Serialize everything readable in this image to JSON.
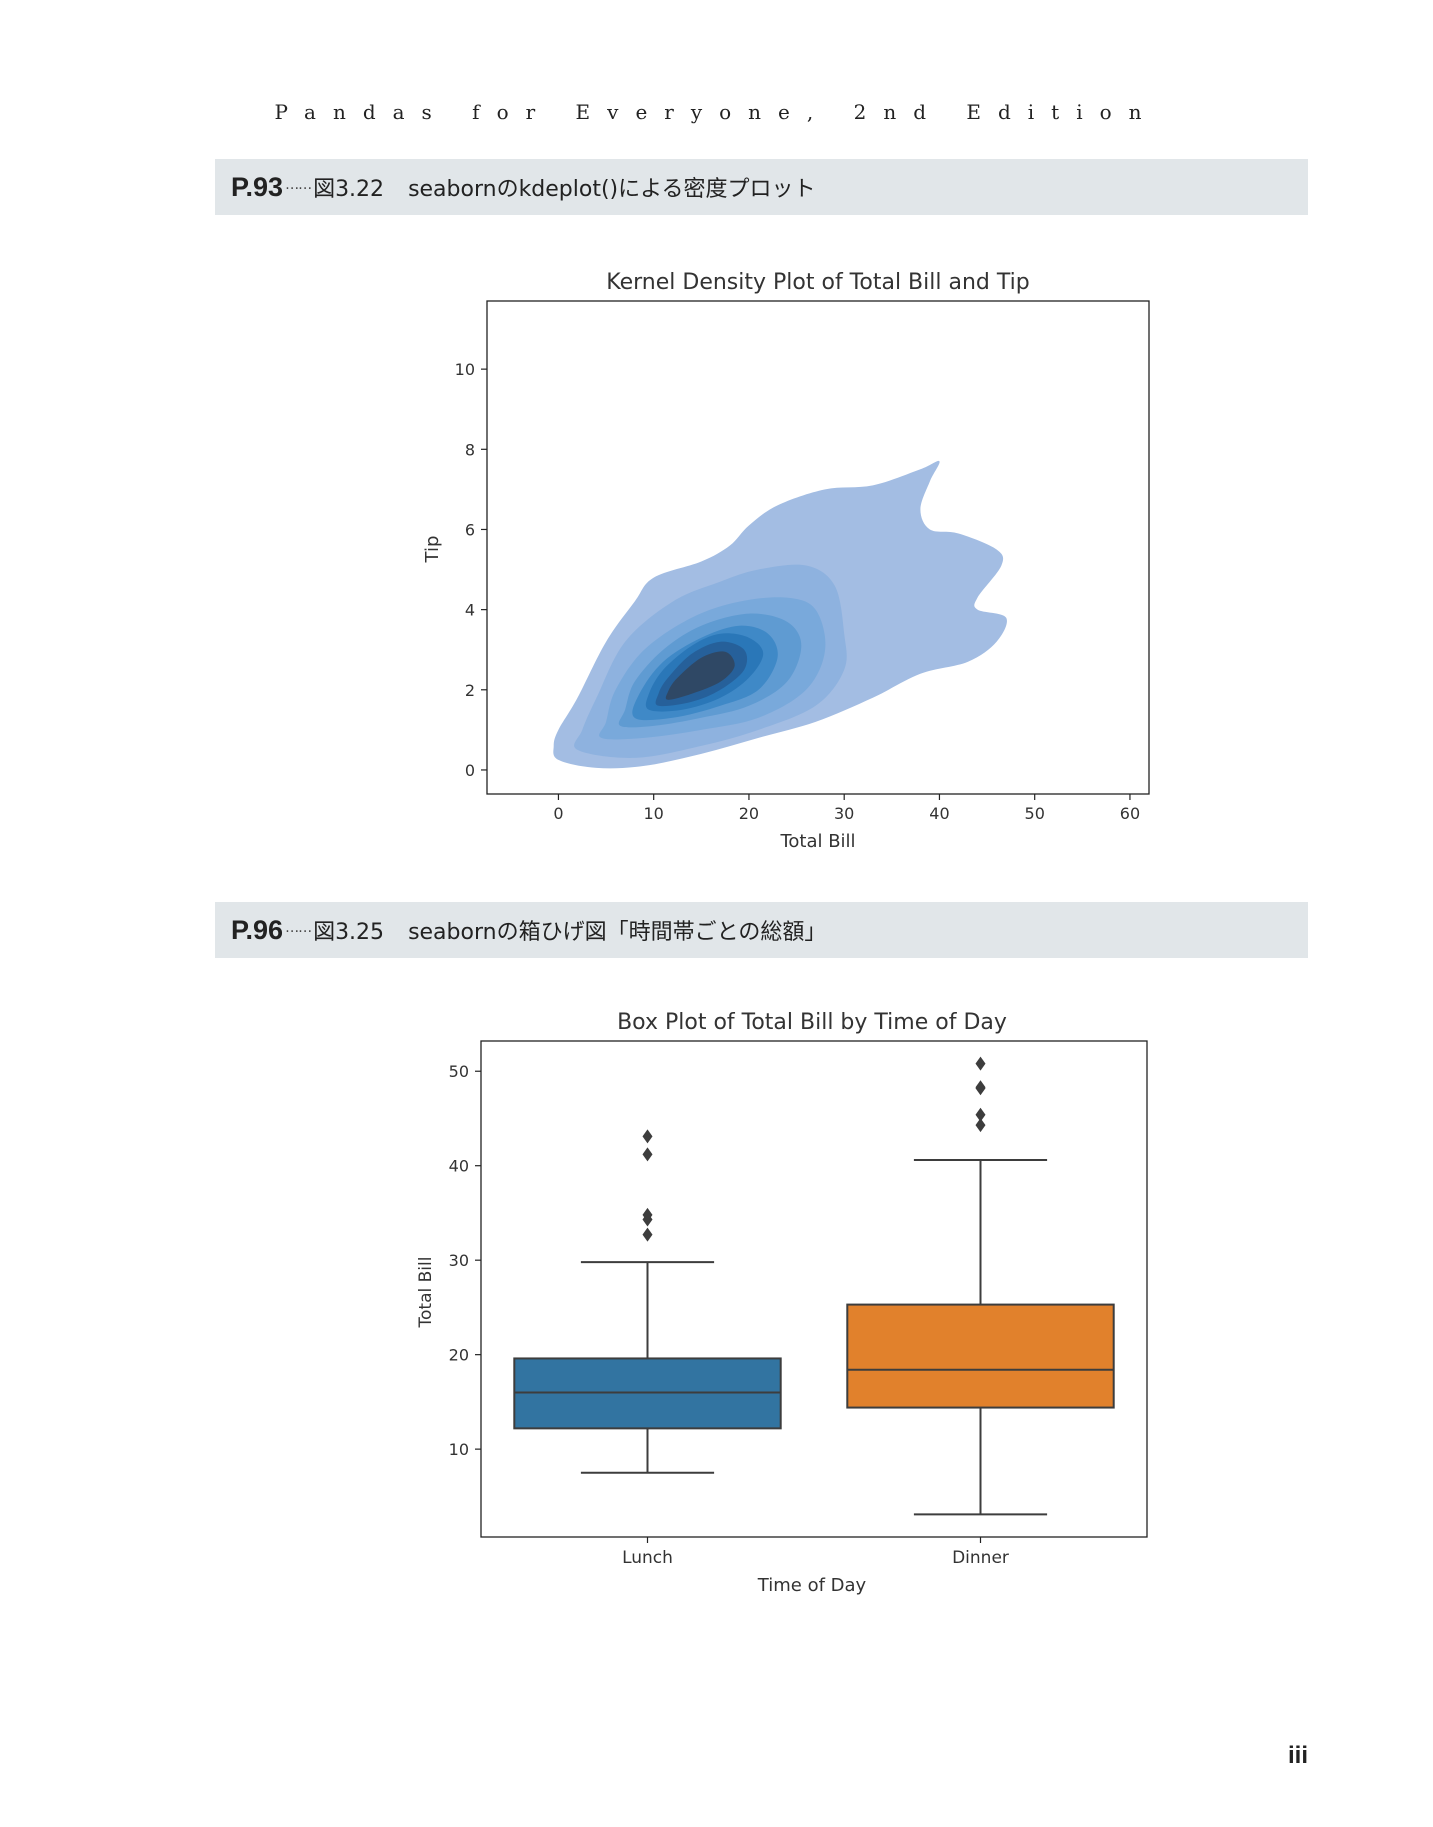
{
  "header": {
    "book_title": "Pandas for Everyone, 2nd Edition"
  },
  "sections": [
    {
      "page": "P.93",
      "dots": "……",
      "figure": "図3.22",
      "caption": "seabornのkdeplot()による密度プロット"
    },
    {
      "page": "P.96",
      "dots": "……",
      "figure": "図3.25",
      "caption": "seabornの箱ひげ図「時間帯ごとの総額」"
    }
  ],
  "footer": {
    "page_number": "iii"
  },
  "colors": {
    "kde_fill": "#4c72b0",
    "lunch": "#3274a1",
    "dinner": "#e1812c",
    "section_bg": "#e1e6e9"
  },
  "chart_data": [
    {
      "type": "kde",
      "title": "Kernel Density Plot of Total Bill and Tip",
      "xlabel": "Total Bill",
      "ylabel": "Tip",
      "xlim": [
        -7.5,
        62
      ],
      "ylim": [
        -0.6,
        11.7
      ],
      "xticks": [
        0,
        10,
        20,
        30,
        40,
        50,
        60
      ],
      "yticks": [
        0,
        2,
        4,
        6,
        8,
        10
      ],
      "density_peak": {
        "x": 16,
        "y": 2.5
      },
      "levels": [
        {
          "level": 1,
          "boundary": [
            [
              -0.5,
              0.6
            ],
            [
              0,
              0.25
            ],
            [
              4,
              0.05
            ],
            [
              9,
              0.1
            ],
            [
              15,
              0.4
            ],
            [
              21,
              0.8
            ],
            [
              27,
              1.2
            ],
            [
              33,
              1.8
            ],
            [
              38,
              2.4
            ],
            [
              43,
              2.7
            ],
            [
              46,
              3.2
            ],
            [
              47,
              3.8
            ],
            [
              44,
              4
            ],
            [
              44,
              4.3
            ],
            [
              46.5,
              5.1
            ],
            [
              46,
              5.5
            ],
            [
              42,
              5.9
            ],
            [
              39,
              6
            ],
            [
              38,
              6.5
            ],
            [
              39,
              7.2
            ],
            [
              40,
              7.7
            ],
            [
              38,
              7.5
            ],
            [
              33,
              7.1
            ],
            [
              28,
              7
            ],
            [
              23,
              6.6
            ],
            [
              20,
              6.1
            ],
            [
              18,
              5.6
            ],
            [
              15,
              5.2
            ],
            [
              10,
              4.8
            ],
            [
              8,
              4.2
            ],
            [
              5,
              3.2
            ],
            [
              2,
              1.8
            ],
            [
              0,
              1
            ]
          ]
        },
        {
          "level": 2,
          "boundary": [
            [
              2,
              0.5
            ],
            [
              8,
              0.3
            ],
            [
              15,
              0.6
            ],
            [
              21,
              1
            ],
            [
              27,
              1.6
            ],
            [
              30,
              2.5
            ],
            [
              30,
              3.4
            ],
            [
              29,
              4.6
            ],
            [
              26,
              5.1
            ],
            [
              21,
              5
            ],
            [
              17,
              4.7
            ],
            [
              12,
              4.2
            ],
            [
              7,
              3.2
            ],
            [
              4,
              1.8
            ],
            [
              2.5,
              1
            ]
          ]
        },
        {
          "level": 3,
          "boundary": [
            [
              4.5,
              0.8
            ],
            [
              9,
              0.8
            ],
            [
              15,
              1
            ],
            [
              21,
              1.3
            ],
            [
              26,
              2
            ],
            [
              28,
              3
            ],
            [
              27,
              4
            ],
            [
              24,
              4.3
            ],
            [
              19,
              4.2
            ],
            [
              14,
              3.8
            ],
            [
              9,
              3
            ],
            [
              6,
              2
            ],
            [
              5,
              1.2
            ]
          ]
        },
        {
          "level": 4,
          "boundary": [
            [
              6.5,
              1.1
            ],
            [
              10,
              1.1
            ],
            [
              15,
              1.3
            ],
            [
              20,
              1.6
            ],
            [
              24,
              2.2
            ],
            [
              25.5,
              3.1
            ],
            [
              24,
              3.7
            ],
            [
              20,
              3.9
            ],
            [
              15,
              3.6
            ],
            [
              11,
              3
            ],
            [
              8,
              2.2
            ],
            [
              7,
              1.5
            ]
          ]
        },
        {
          "level": 5,
          "boundary": [
            [
              8,
              1.3
            ],
            [
              12,
              1.3
            ],
            [
              17,
              1.6
            ],
            [
              21,
              2
            ],
            [
              23,
              2.8
            ],
            [
              22,
              3.4
            ],
            [
              19,
              3.6
            ],
            [
              15,
              3.3
            ],
            [
              11,
              2.7
            ],
            [
              8.5,
              1.9
            ]
          ]
        },
        {
          "level": 6,
          "boundary": [
            [
              9.5,
              1.5
            ],
            [
              13,
              1.5
            ],
            [
              17,
              1.8
            ],
            [
              20,
              2.3
            ],
            [
              21.5,
              2.9
            ],
            [
              20,
              3.3
            ],
            [
              17,
              3.4
            ],
            [
              14,
              3.1
            ],
            [
              11,
              2.5
            ],
            [
              9.5,
              1.9
            ]
          ]
        },
        {
          "level": 7,
          "boundary": [
            [
              10.5,
              1.6
            ],
            [
              14,
              1.7
            ],
            [
              17,
              2
            ],
            [
              19.5,
              2.5
            ],
            [
              19.5,
              3
            ],
            [
              17,
              3.2
            ],
            [
              14,
              2.9
            ],
            [
              11.5,
              2.3
            ],
            [
              10.5,
              1.9
            ]
          ]
        },
        {
          "level": 8,
          "boundary": [
            [
              11.5,
              1.75
            ],
            [
              14,
              1.9
            ],
            [
              17,
              2.2
            ],
            [
              18.5,
              2.6
            ],
            [
              17.5,
              2.95
            ],
            [
              15,
              2.8
            ],
            [
              12.5,
              2.3
            ],
            [
              11.5,
              1.95
            ]
          ]
        }
      ]
    },
    {
      "type": "box",
      "title": "Box Plot of Total Bill by Time of Day",
      "xlabel": "Time of Day",
      "ylabel": "Total Bill",
      "ylim": [
        0.7,
        53.2
      ],
      "yticks": [
        10,
        20,
        30,
        40,
        50
      ],
      "categories": [
        "Lunch",
        "Dinner"
      ],
      "series": [
        {
          "category": "Lunch",
          "whisker_low": 7.5,
          "q1": 12.2,
          "median": 16.0,
          "q3": 19.6,
          "whisker_high": 29.8,
          "outliers": [
            32.7,
            34.3,
            34.8,
            41.2,
            43.1
          ]
        },
        {
          "category": "Dinner",
          "whisker_low": 3.1,
          "q1": 14.4,
          "median": 18.4,
          "q3": 25.3,
          "whisker_high": 40.6,
          "outliers": [
            44.3,
            45.4,
            48.2,
            48.3,
            50.8
          ]
        }
      ]
    }
  ]
}
